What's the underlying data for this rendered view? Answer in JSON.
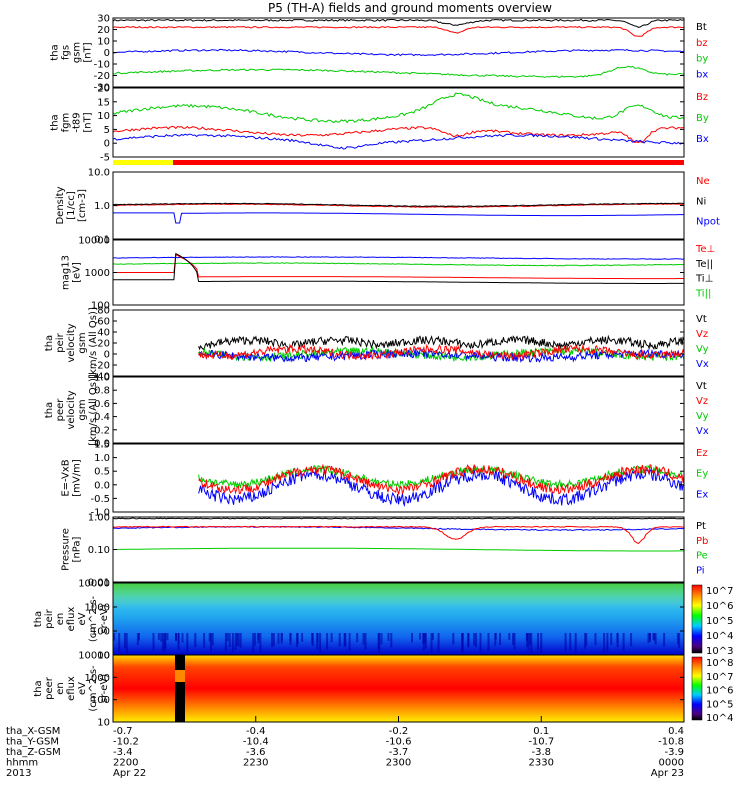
{
  "title": "P5 (TH-A) fields and ground moments overview",
  "colors": {
    "black": "#000000",
    "red": "#ff0000",
    "green": "#00cc00",
    "blue": "#0000ff",
    "yellow": "#ffff00"
  },
  "panels": [
    {
      "id": "fgs",
      "ylabel": [
        "tha",
        "fgs",
        "gsm",
        "[nT]"
      ],
      "ticks": [
        "30",
        "20",
        "10",
        "0",
        "-10",
        "-20",
        "-30"
      ],
      "legend": [
        {
          "text": "Bt",
          "color": "#000000"
        },
        {
          "text": "bz",
          "color": "#ff0000"
        },
        {
          "text": "by",
          "color": "#00cc00"
        },
        {
          "text": "bx",
          "color": "#0000ff"
        }
      ]
    },
    {
      "id": "fgm",
      "ylabel": [
        "tha",
        "fgm",
        "-t89",
        "[nT]"
      ],
      "ticks": [
        "20",
        "15",
        "10",
        "5",
        "0",
        "-5"
      ],
      "legend": [
        {
          "text": "Bz",
          "color": "#ff0000"
        },
        {
          "text": "By",
          "color": "#00cc00"
        },
        {
          "text": "Bx",
          "color": "#0000ff"
        }
      ]
    },
    {
      "id": "density",
      "ylabel": [
        "Density",
        "[1/cc]",
        "[cm-3]"
      ],
      "ticks": [
        "10.0",
        "1.0",
        "0.1"
      ],
      "legend": [
        {
          "text": "Ne",
          "color": "#ff0000"
        },
        {
          "text": "Ni",
          "color": "#000000"
        },
        {
          "text": "Npot",
          "color": "#0000ff"
        }
      ]
    },
    {
      "id": "temp",
      "ylabel": [
        "mag13",
        "[eV]"
      ],
      "ticks": [
        "10000",
        "1000",
        "100"
      ],
      "legend": [
        {
          "text": "Te⊥",
          "color": "#ff0000"
        },
        {
          "text": "Te||",
          "color": "#000000"
        },
        {
          "text": "Ti⊥",
          "color": "#000000"
        },
        {
          "text": "Ti||",
          "color": "#00cc00"
        }
      ]
    },
    {
      "id": "peir_vel",
      "ylabel": [
        "tha",
        "peir",
        "velocity",
        "gsm",
        "[km/s (All Qs)]"
      ],
      "ticks": [
        "80",
        "60",
        "40",
        "20",
        "0",
        "-20",
        "-40"
      ],
      "legend": [
        {
          "text": "Vt",
          "color": "#000000"
        },
        {
          "text": "Vz",
          "color": "#ff0000"
        },
        {
          "text": "Vy",
          "color": "#00cc00"
        },
        {
          "text": "Vx",
          "color": "#0000ff"
        }
      ]
    },
    {
      "id": "peer_vel",
      "ylabel": [
        "tha",
        "peer",
        "velocity",
        "gsm",
        "[km/s (All Qs)]"
      ],
      "ticks": [
        "1.0",
        "0.8",
        "0.6",
        "0.4",
        "0.2",
        "0.0"
      ],
      "legend": [
        {
          "text": "Vt",
          "color": "#000000"
        },
        {
          "text": "Vz",
          "color": "#ff0000"
        },
        {
          "text": "Vy",
          "color": "#00cc00"
        },
        {
          "text": "Vx",
          "color": "#0000ff"
        }
      ]
    },
    {
      "id": "efield",
      "ylabel": [
        "E=-VxB",
        "[mV/m]"
      ],
      "ticks": [
        "1.5",
        "1.0",
        "0.5",
        "0.0",
        "-0.5",
        "-1.0"
      ],
      "legend": [
        {
          "text": "Ez",
          "color": "#ff0000"
        },
        {
          "text": "Ey",
          "color": "#00cc00"
        },
        {
          "text": "Ex",
          "color": "#0000ff"
        }
      ]
    },
    {
      "id": "pressure",
      "ylabel": [
        "Pressure",
        "[nPa]"
      ],
      "ticks": [
        "1.00",
        "0.10",
        "0.01"
      ],
      "legend": [
        {
          "text": "Pt",
          "color": "#000000"
        },
        {
          "text": "Pb",
          "color": "#ff0000"
        },
        {
          "text": "Pe",
          "color": "#00cc00"
        },
        {
          "text": "Pi",
          "color": "#0000ff"
        }
      ]
    },
    {
      "id": "peir_spec",
      "ylabel": [
        "tha",
        "peir",
        "en",
        "eflux",
        "eV",
        "(cm^2-s-",
        "sr-eV)"
      ],
      "ticks": [
        "10000",
        "1000",
        "100",
        "10"
      ],
      "colorbar": [
        "10^7",
        "10^6",
        "10^5",
        "10^4",
        "10^3"
      ]
    },
    {
      "id": "peer_spec",
      "ylabel": [
        "tha",
        "peer",
        "en",
        "eflux",
        "eV",
        "(cm^2-s-",
        "sr-eV)"
      ],
      "ticks": [
        "10000",
        "1000",
        "100",
        "10"
      ],
      "colorbar": [
        "10^8",
        "10^7",
        "10^6",
        "10^5",
        "10^4"
      ]
    }
  ],
  "footer": {
    "rows": [
      {
        "label": "tha_X-GSM",
        "values": [
          "-0.7",
          "-0.4",
          "-0.2",
          "0.1",
          "0.4"
        ]
      },
      {
        "label": "tha_Y-GSM",
        "values": [
          "-10.2",
          "-10.4",
          "-10.6",
          "-10.7",
          "-10.8"
        ]
      },
      {
        "label": "tha_Z-GSM",
        "values": [
          "-3.4",
          "-3.6",
          "-3.7",
          "-3.8",
          "-3.9"
        ]
      },
      {
        "label": "hhmm",
        "values": [
          "2200",
          "2230",
          "2300",
          "2330",
          "0000"
        ]
      },
      {
        "label": "2013",
        "values": [
          "Apr 22",
          "",
          "",
          "",
          "Apr 23"
        ]
      }
    ]
  },
  "chart_data": {
    "type": "line",
    "title": "P5 (TH-A) fields and ground moments overview",
    "x_ticks": [
      "2200",
      "2230",
      "2300",
      "2330",
      "0000"
    ],
    "x_dates": [
      "2013 Apr 22",
      "",
      "",
      "",
      "2013 Apr 23"
    ],
    "series_approx": {
      "Bt_nT": 28,
      "bz_nT": 22,
      "by_nT": -20,
      "bx_nT": 0,
      "Ne_cc": 1.0,
      "Npot_cc": 0.6,
      "Te_para_eV": 2500,
      "Ti_perp_eV": 1800,
      "Te_perp_eV": 700,
      "Pt_nPa": 0.9,
      "Pb_nPa": 0.5,
      "Pe_nPa": 0.1
    }
  }
}
